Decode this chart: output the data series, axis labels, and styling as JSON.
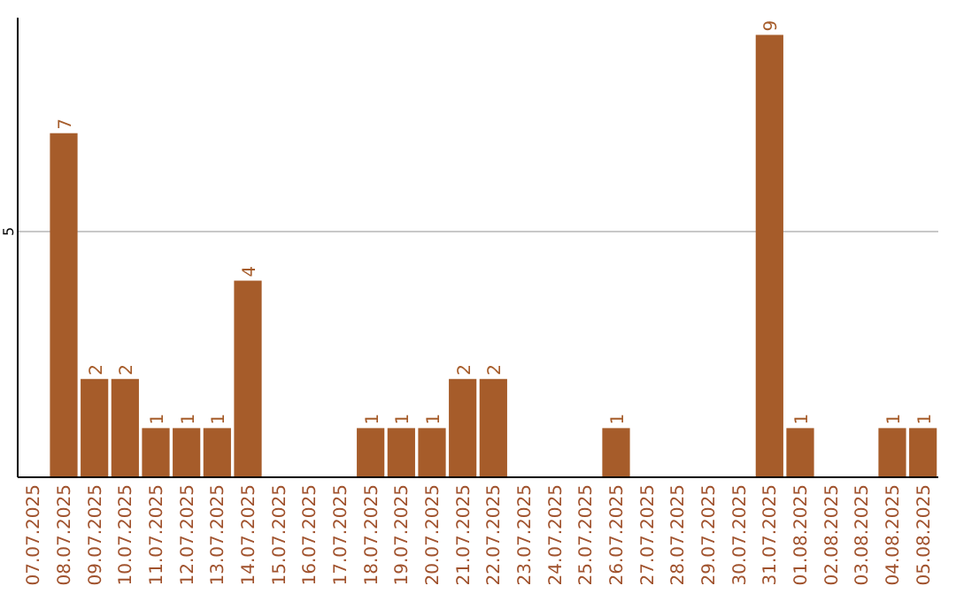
{
  "chart_data": {
    "type": "bar",
    "categories": [
      "07.07.2025",
      "08.07.2025",
      "09.07.2025",
      "10.07.2025",
      "11.07.2025",
      "12.07.2025",
      "13.07.2025",
      "14.07.2025",
      "15.07.2025",
      "16.07.2025",
      "17.07.2025",
      "18.07.2025",
      "19.07.2025",
      "20.07.2025",
      "21.07.2025",
      "22.07.2025",
      "23.07.2025",
      "24.07.2025",
      "25.07.2025",
      "26.07.2025",
      "27.07.2025",
      "28.07.2025",
      "29.07.2025",
      "30.07.2025",
      "31.07.2025",
      "01.08.2025",
      "02.08.2025",
      "03.08.2025",
      "04.08.2025",
      "05.08.2025"
    ],
    "values": [
      0,
      7,
      2,
      2,
      1,
      1,
      1,
      4,
      0,
      0,
      0,
      1,
      1,
      1,
      2,
      2,
      0,
      0,
      0,
      1,
      0,
      0,
      0,
      0,
      9,
      1,
      0,
      0,
      1,
      1
    ],
    "value_labels": [
      null,
      "7",
      "2",
      "2",
      "1",
      "1",
      "1",
      "4",
      null,
      null,
      null,
      "1",
      "1",
      "1",
      "2",
      "2",
      null,
      null,
      null,
      "1",
      null,
      null,
      null,
      null,
      "9",
      "1",
      null,
      null,
      "1",
      "1"
    ],
    "color": "#a65c2a",
    "ylim": [
      0,
      9.35
    ],
    "yticks": [
      5
    ],
    "grid": "y"
  }
}
